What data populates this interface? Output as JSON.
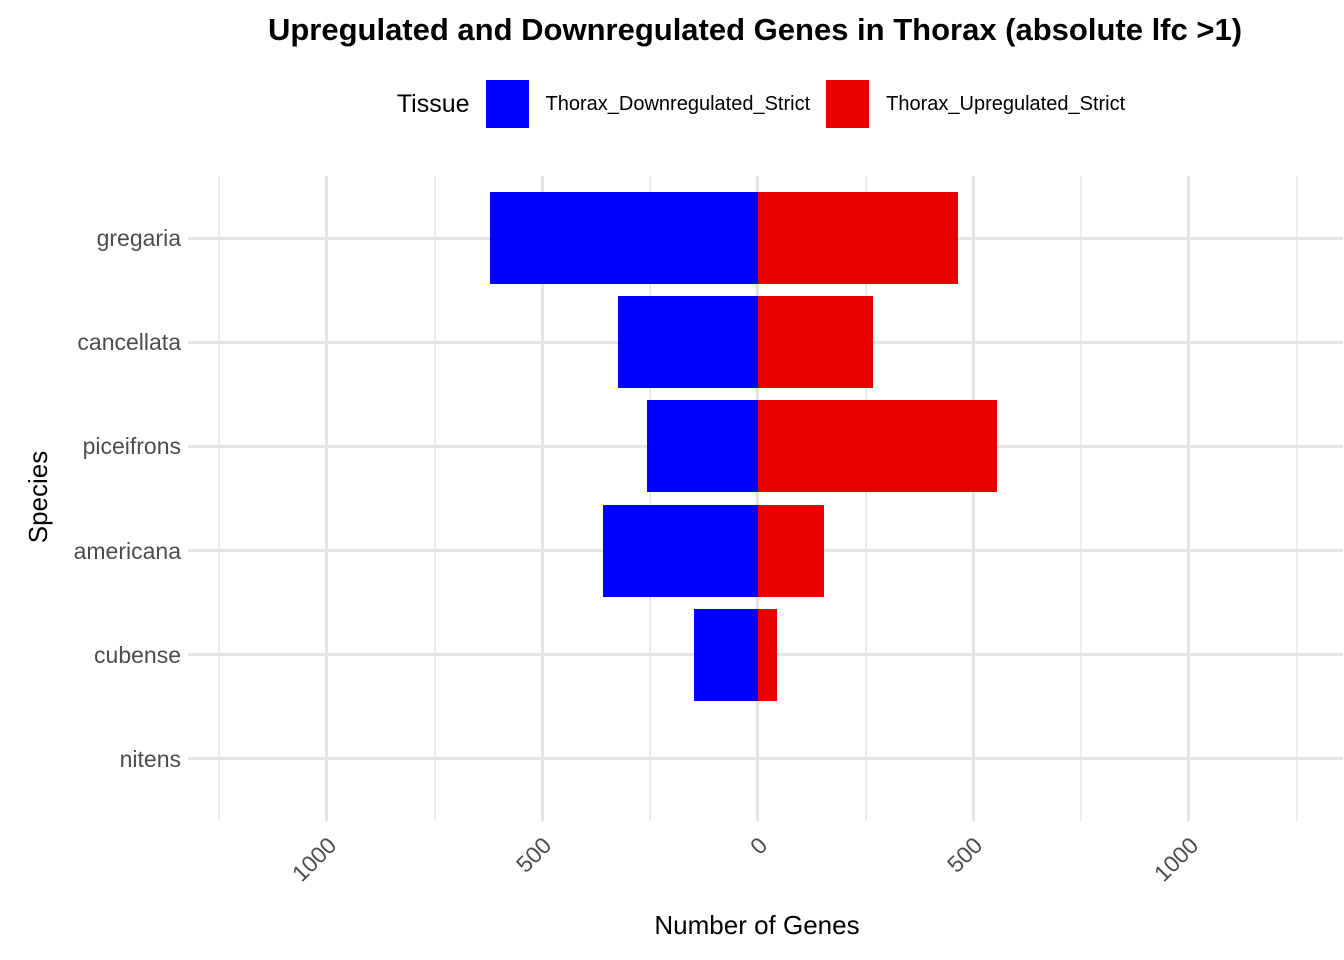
{
  "title": "Upregulated and Downregulated Genes in Thorax (absolute lfc >1)",
  "legend": {
    "title": "Tissue",
    "items": [
      {
        "label": "Thorax_Downregulated_Strict",
        "color": "#0000ff"
      },
      {
        "label": "Thorax_Upregulated_Strict",
        "color": "#e60000"
      }
    ]
  },
  "axes": {
    "x_title": "Number of Genes",
    "y_title": "Species",
    "x_ticks": {
      "values": [
        -1000,
        -500,
        0,
        500,
        1000
      ],
      "labels": [
        "1000",
        "500",
        "0",
        "500",
        "1000"
      ]
    },
    "x_minor_ticks": [
      -1250,
      -750,
      -250,
      250,
      750,
      1250
    ]
  },
  "chart_data": {
    "type": "bar",
    "orientation": "horizontal",
    "diverging": true,
    "title": "Upregulated and Downregulated Genes in Thorax (absolute lfc >1)",
    "xlabel": "Number of Genes",
    "ylabel": "Species",
    "categories": [
      "gregaria",
      "cancellata",
      "piceifrons",
      "americana",
      "cubense",
      "nitens"
    ],
    "series": [
      {
        "name": "Thorax_Downregulated_Strict",
        "color": "#0000ff",
        "direction": "negative",
        "values": [
          622,
          325,
          258,
          360,
          149,
          0
        ]
      },
      {
        "name": "Thorax_Upregulated_Strict",
        "color": "#e60000",
        "direction": "positive",
        "values": [
          464,
          267,
          556,
          153,
          44,
          0
        ]
      }
    ],
    "xlim": [
      -1320,
      1360
    ],
    "grid": true,
    "legend_position": "top",
    "background": "#ffffff"
  }
}
